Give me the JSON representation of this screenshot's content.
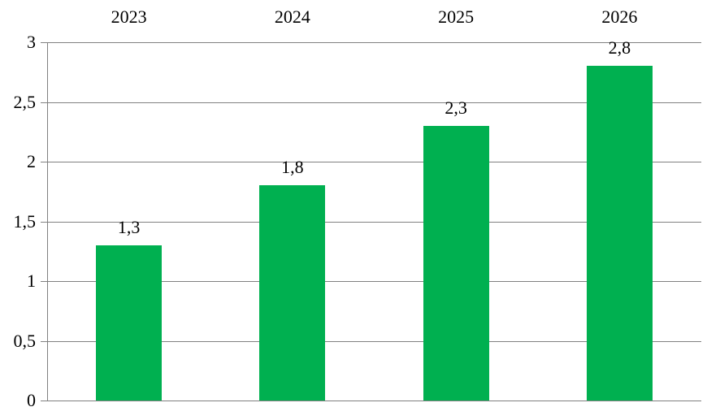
{
  "chart_data": {
    "type": "bar",
    "title": "",
    "categories": [
      "2023",
      "2024",
      "2025",
      "2026"
    ],
    "values": [
      1.3,
      1.8,
      2.3,
      2.8
    ],
    "value_labels": [
      "1,3",
      "1,8",
      "2,3",
      "2,8"
    ],
    "y_ticks": [
      {
        "value": 3,
        "label": "3"
      },
      {
        "value": 2.5,
        "label": "2,5"
      },
      {
        "value": 2,
        "label": "2"
      },
      {
        "value": 1.5,
        "label": "1,5"
      },
      {
        "value": 1,
        "label": "1"
      },
      {
        "value": 0.5,
        "label": "0,5"
      },
      {
        "value": 0,
        "label": "0"
      }
    ],
    "ylim": [
      0,
      3
    ],
    "grid": true,
    "legend": "none",
    "category_label_position": "top",
    "decimal_separator": ",",
    "colors": {
      "bar": "#00B050",
      "gridline": "#808080",
      "axis": "#808080",
      "text": "#000000",
      "background": "#FFFFFF"
    }
  }
}
